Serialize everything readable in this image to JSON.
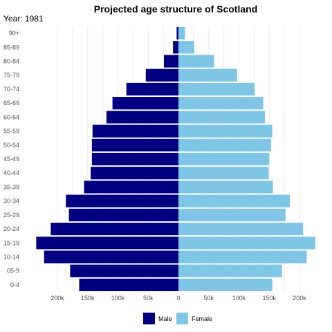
{
  "chart_data": {
    "type": "bar",
    "orientation": "horizontal",
    "title": "Projected age structure of Scotland",
    "subtitle": "Year: 1981",
    "categories": [
      "0-4",
      "05-9",
      "10-14",
      "15-19",
      "20-24",
      "25-29",
      "30-34",
      "35-39",
      "40-44",
      "45-49",
      "50-54",
      "55-59",
      "60-64",
      "65-69",
      "70-74",
      "75-79",
      "80-84",
      "85-89",
      "90+"
    ],
    "series": [
      {
        "name": "Male",
        "color": "#000080",
        "direction": "left",
        "values": [
          164000,
          179000,
          222000,
          235000,
          211000,
          181000,
          186000,
          156000,
          145000,
          143000,
          143000,
          142000,
          119000,
          109000,
          86000,
          54000,
          24000,
          9000,
          3000
        ]
      },
      {
        "name": "Female",
        "color": "#7ec5e6",
        "direction": "right",
        "values": [
          155000,
          171000,
          212000,
          226000,
          206000,
          177000,
          184000,
          156000,
          149000,
          150000,
          153000,
          155000,
          143000,
          140000,
          126000,
          97000,
          59000,
          26000,
          11000
        ]
      }
    ],
    "xlim": [
      -230000,
      230000
    ],
    "x_ticks": [
      -200000,
      -150000,
      -100000,
      -50000,
      0,
      50000,
      100000,
      150000,
      200000
    ],
    "x_tick_labels": [
      "200k",
      "150k",
      "100k",
      "50k",
      "0",
      "50k",
      "100k",
      "150k",
      "200k"
    ],
    "grid": true,
    "legend_position": "bottom"
  }
}
